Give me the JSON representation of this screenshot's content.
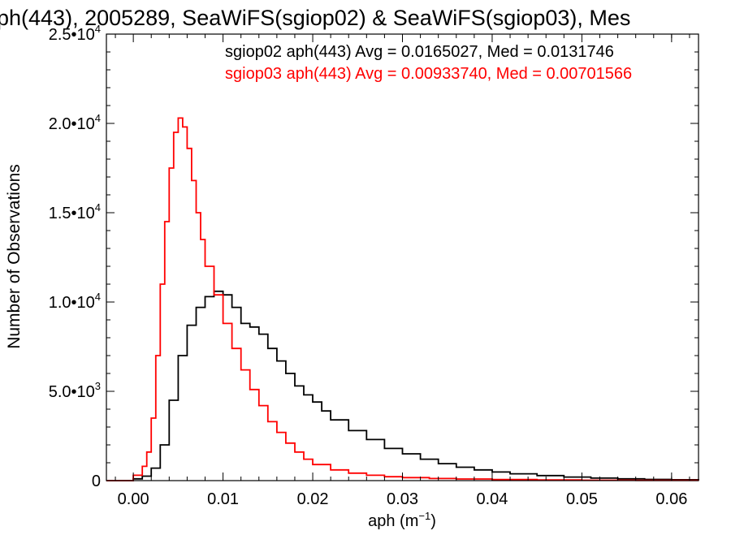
{
  "chart_data": {
    "type": "line",
    "title": "ph(443), 2005289, SeaWiFS(sgiop02) & SeaWiFS(sgiop03), Mes",
    "xlabel": "aph (m",
    "xlabel_sup": "−1",
    "xlabel_end": ")",
    "ylabel": "Number of Observations",
    "xlim": [
      -0.003,
      0.063
    ],
    "ylim": [
      0,
      25000
    ],
    "x_ticks": [
      0.0,
      0.01,
      0.02,
      0.03,
      0.04,
      0.05,
      0.06
    ],
    "x_tick_labels": [
      "0.00",
      "0.01",
      "0.02",
      "0.03",
      "0.04",
      "0.05",
      "0.06"
    ],
    "y_ticks": [
      {
        "value": 0,
        "mantissa": "0",
        "exp": ""
      },
      {
        "value": 5000,
        "mantissa": "5.0•10",
        "exp": "3"
      },
      {
        "value": 10000,
        "mantissa": "1.0•10",
        "exp": "4"
      },
      {
        "value": 15000,
        "mantissa": "1.5•10",
        "exp": "4"
      },
      {
        "value": 20000,
        "mantissa": "2.0•10",
        "exp": "4"
      },
      {
        "value": 25000,
        "mantissa": "2.5•10",
        "exp": "4"
      }
    ],
    "grid": false,
    "legend_position": "top-right",
    "series": [
      {
        "name": "sgiop02 aph(443) Avg = 0.0165027, Med = 0.0131746",
        "color": "#000000",
        "x": [
          -0.003,
          -0.001,
          0.0,
          0.001,
          0.002,
          0.003,
          0.004,
          0.005,
          0.006,
          0.007,
          0.008,
          0.009,
          0.01,
          0.011,
          0.012,
          0.013,
          0.014,
          0.015,
          0.016,
          0.017,
          0.018,
          0.019,
          0.02,
          0.021,
          0.022,
          0.024,
          0.026,
          0.028,
          0.03,
          0.032,
          0.034,
          0.036,
          0.038,
          0.04,
          0.042,
          0.045,
          0.048,
          0.051,
          0.054,
          0.057,
          0.06,
          0.063
        ],
        "y": [
          0,
          0,
          100,
          250,
          700,
          2000,
          4500,
          7000,
          8700,
          9700,
          10300,
          10600,
          10400,
          9700,
          8800,
          8600,
          8200,
          7400,
          6700,
          6000,
          5300,
          4800,
          4400,
          3900,
          3400,
          2800,
          2300,
          1800,
          1500,
          1200,
          950,
          750,
          600,
          480,
          380,
          280,
          200,
          140,
          100,
          70,
          50,
          30
        ]
      },
      {
        "name": "sgiop03 aph(443) Avg = 0.00933740, Med = 0.00701566",
        "color": "#ff0000",
        "x": [
          -0.003,
          -0.001,
          0.0,
          0.001,
          0.0015,
          0.002,
          0.0025,
          0.003,
          0.0035,
          0.004,
          0.0045,
          0.005,
          0.0055,
          0.006,
          0.0065,
          0.007,
          0.0075,
          0.008,
          0.009,
          0.01,
          0.011,
          0.012,
          0.013,
          0.014,
          0.015,
          0.016,
          0.017,
          0.018,
          0.019,
          0.02,
          0.022,
          0.024,
          0.026,
          0.028,
          0.03,
          0.033,
          0.036,
          0.04,
          0.045,
          0.05,
          0.056,
          0.063
        ],
        "y": [
          0,
          0,
          300,
          800,
          1600,
          3500,
          7000,
          11000,
          14500,
          17500,
          19500,
          20300,
          19800,
          18600,
          16800,
          15000,
          13500,
          12000,
          10400,
          8800,
          7400,
          6200,
          5100,
          4200,
          3300,
          2700,
          2100,
          1600,
          1200,
          900,
          600,
          420,
          300,
          220,
          170,
          120,
          90,
          60,
          40,
          25,
          15,
          10
        ]
      }
    ]
  }
}
